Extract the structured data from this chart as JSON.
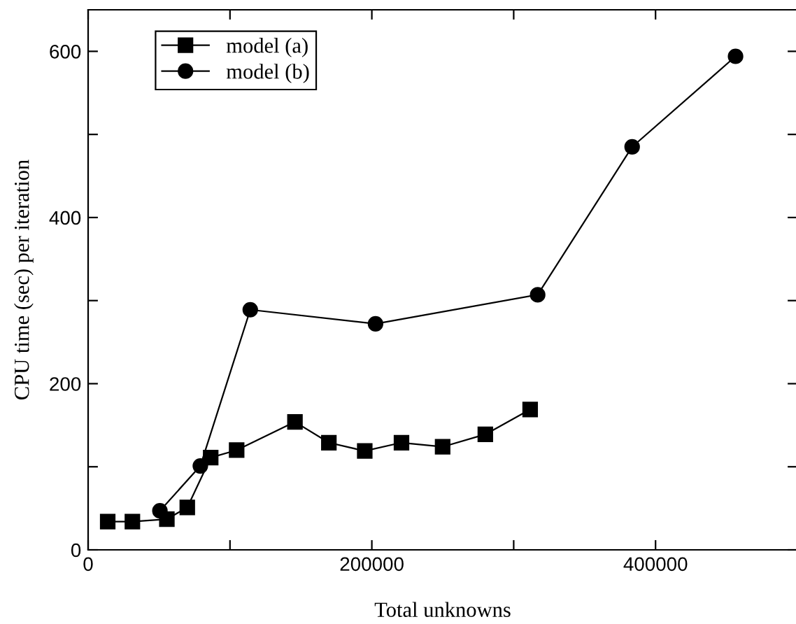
{
  "chart_data": {
    "type": "line",
    "xlabel": "Total unknowns",
    "ylabel": "CPU time (sec) per iteration",
    "xlim": [
      0,
      500000
    ],
    "ylim": [
      0,
      650
    ],
    "xticks": [
      0,
      {
        "value": 100000,
        "label": null
      },
      200000,
      {
        "value": 300000,
        "label": null
      },
      400000
    ],
    "yticks": [
      0,
      {
        "value": 100,
        "label": null
      },
      200,
      {
        "value": 300,
        "label": null
      },
      400,
      {
        "value": 500,
        "label": null
      },
      600
    ],
    "legend": "top left",
    "grid": false,
    "line_style": "solid",
    "series": [
      {
        "name": "model (a)",
        "color": "#000000",
        "marker": "square",
        "x": [
          13800,
          31200,
          55500,
          69900,
          86400,
          104700,
          145800,
          169700,
          195000,
          220900,
          249900,
          280000,
          311600
        ],
        "values": [
          34,
          34,
          37,
          51,
          111,
          120,
          154,
          129,
          119,
          129,
          124,
          139,
          169
        ]
      },
      {
        "name": "model (b)",
        "color": "#000000",
        "marker": "circle",
        "x": [
          50600,
          79100,
          114300,
          202600,
          316900,
          383500,
          456400
        ],
        "values": [
          47,
          101,
          289,
          272,
          307,
          485,
          594
        ]
      }
    ]
  }
}
